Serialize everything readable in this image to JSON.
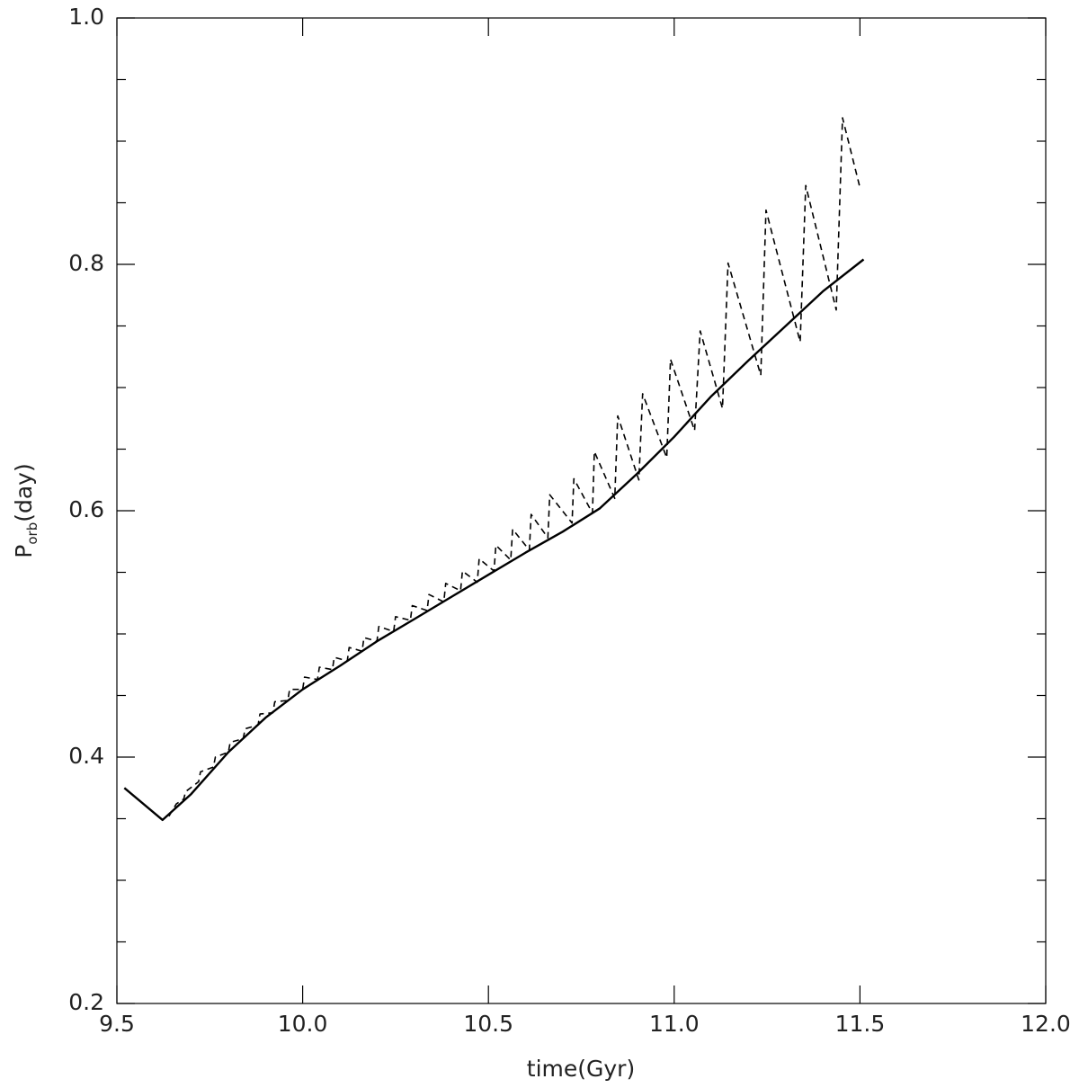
{
  "chart_data": {
    "type": "line",
    "x_label": "time(Gyr)",
    "y_label": "P",
    "y_label_sub": "orb",
    "y_label_suffix": "(day)",
    "xlim": [
      9.5,
      12.0
    ],
    "xticks": [
      9.5,
      {
        "value": 10,
        "label": "10.0"
      },
      10.5,
      {
        "value": 11,
        "label": "11.0"
      },
      11.5,
      {
        "value": 12,
        "label": "12.0"
      }
    ],
    "ylim": [
      0.2,
      1.0
    ],
    "yticks": [
      0.2,
      0.4,
      0.6,
      0.8,
      {
        "value": 1,
        "label": "1.0"
      }
    ],
    "yminorticks": [
      0.25,
      0.3,
      0.35,
      0.45,
      0.5,
      0.55,
      0.65,
      0.7,
      0.75,
      0.85,
      0.9,
      0.95
    ],
    "series": [
      {
        "color": "#000000",
        "dashed": false,
        "x": [
          9.52,
          9.623,
          9.7,
          9.8,
          9.9,
          10.0,
          10.1,
          10.2,
          10.3,
          10.4,
          10.5,
          10.6,
          10.7,
          10.8,
          10.9,
          11.0,
          11.1,
          11.2,
          11.3,
          11.4,
          11.51
        ],
        "values": [
          0.375,
          0.349,
          0.37,
          0.404,
          0.432,
          0.455,
          0.474,
          0.494,
          0.512,
          0.53,
          0.548,
          0.566,
          0.583,
          0.602,
          0.63,
          0.66,
          0.693,
          0.722,
          0.75,
          0.778,
          0.804
        ]
      },
      {
        "color": "#000000",
        "dashed": true,
        "x": [
          9.64,
          9.66,
          9.68,
          9.685,
          9.72,
          9.725,
          9.76,
          9.765,
          9.8,
          9.805,
          9.84,
          9.845,
          9.88,
          9.885,
          9.92,
          9.925,
          9.96,
          9.965,
          10.0,
          10.005,
          10.04,
          10.045,
          10.08,
          10.085,
          10.12,
          10.125,
          10.16,
          10.165,
          10.2,
          10.205,
          10.245,
          10.25,
          10.29,
          10.295,
          10.335,
          10.34,
          10.38,
          10.385,
          10.425,
          10.43,
          10.47,
          10.475,
          10.515,
          10.52,
          10.56,
          10.565,
          10.61,
          10.615,
          10.66,
          10.665,
          10.725,
          10.73,
          10.78,
          10.785,
          10.84,
          10.848,
          10.905,
          10.915,
          10.98,
          10.99,
          11.055,
          11.07,
          11.13,
          11.145,
          11.233,
          11.247,
          11.339,
          11.354,
          11.436,
          11.453,
          11.501
        ],
        "values": [
          0.352,
          0.362,
          0.366,
          0.372,
          0.38,
          0.388,
          0.392,
          0.4,
          0.404,
          0.412,
          0.415,
          0.423,
          0.426,
          0.435,
          0.436,
          0.445,
          0.446,
          0.455,
          0.455,
          0.465,
          0.463,
          0.473,
          0.471,
          0.481,
          0.478,
          0.489,
          0.486,
          0.497,
          0.494,
          0.506,
          0.502,
          0.514,
          0.511,
          0.523,
          0.519,
          0.532,
          0.526,
          0.541,
          0.535,
          0.551,
          0.542,
          0.561,
          0.551,
          0.572,
          0.56,
          0.585,
          0.568,
          0.597,
          0.578,
          0.613,
          0.59,
          0.626,
          0.598,
          0.648,
          0.61,
          0.677,
          0.625,
          0.695,
          0.643,
          0.723,
          0.665,
          0.746,
          0.683,
          0.801,
          0.71,
          0.844,
          0.737,
          0.864,
          0.763,
          0.919,
          0.861
        ]
      }
    ]
  }
}
